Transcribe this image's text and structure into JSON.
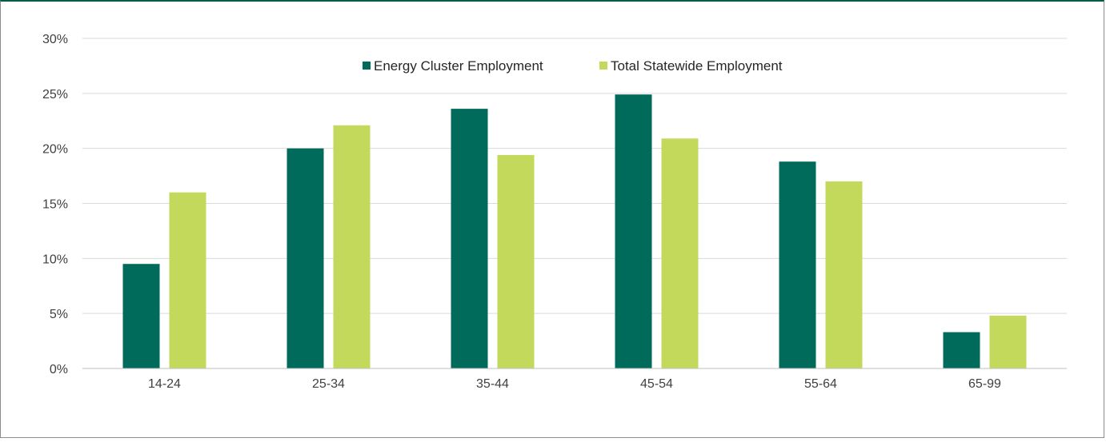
{
  "chart_data": {
    "type": "bar",
    "categories": [
      "14-24",
      "25-34",
      "35-44",
      "45-54",
      "55-64",
      "65-99"
    ],
    "series": [
      {
        "name": "Energy Cluster Employment",
        "color": "#006b5b",
        "values": [
          9.5,
          20.0,
          23.6,
          24.9,
          18.8,
          3.3
        ]
      },
      {
        "name": "Total Statewide Employment",
        "color": "#c2d95b",
        "values": [
          16.0,
          22.1,
          19.4,
          20.9,
          17.0,
          4.8
        ]
      }
    ],
    "ylim": [
      0,
      30
    ],
    "yticks": [
      "0%",
      "5%",
      "10%",
      "15%",
      "20%",
      "25%",
      "30%"
    ],
    "ytick_values": [
      0,
      5,
      10,
      15,
      20,
      25,
      30
    ],
    "grid": true,
    "legend_position": "top-center",
    "title": "",
    "xlabel": "",
    "ylabel": ""
  }
}
